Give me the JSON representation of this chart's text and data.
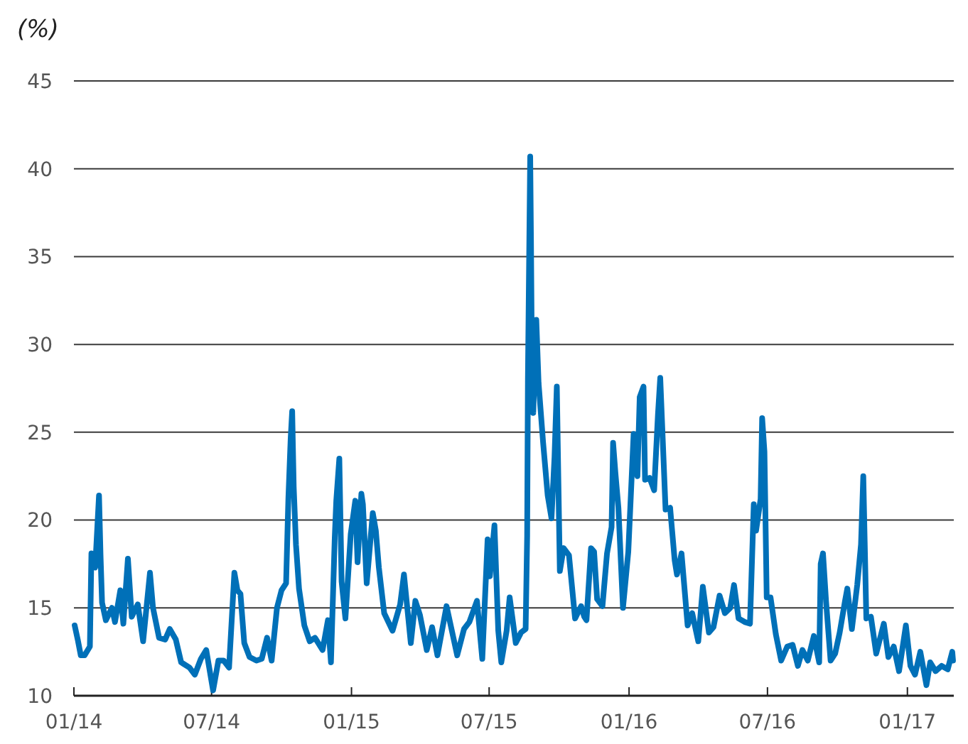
{
  "chart_data": {
    "type": "line",
    "ylabel": "(%)",
    "xlim": [
      "2014-01-01",
      "2017-03-03"
    ],
    "ylim": [
      10,
      45
    ],
    "yticks": [
      10,
      15,
      20,
      25,
      30,
      35,
      40,
      45
    ],
    "xticks": [
      {
        "value": "2014-01-01",
        "label": "01/14"
      },
      {
        "value": "2014-07-01",
        "label": "07/14"
      },
      {
        "value": "2015-01-01",
        "label": "01/15"
      },
      {
        "value": "2015-07-01",
        "label": "07/15"
      },
      {
        "value": "2016-01-01",
        "label": "01/16"
      },
      {
        "value": "2016-07-01",
        "label": "07/16"
      },
      {
        "value": "2017-01-01",
        "label": "01/17"
      }
    ],
    "grid": "y",
    "line_style": "solid",
    "marker": "none",
    "x": [
      "2014-01-02",
      "2014-01-06",
      "2014-01-10",
      "2014-01-15",
      "2014-01-22",
      "2014-01-24",
      "2014-01-27",
      "2014-01-29",
      "2014-02-03",
      "2014-02-05",
      "2014-02-07",
      "2014-02-12",
      "2014-02-20",
      "2014-02-24",
      "2014-03-03",
      "2014-03-07",
      "2014-03-13",
      "2014-03-18",
      "2014-03-26",
      "2014-04-02",
      "2014-04-11",
      "2014-04-15",
      "2014-04-23",
      "2014-05-01",
      "2014-05-07",
      "2014-05-15",
      "2014-05-22",
      "2014-06-02",
      "2014-06-09",
      "2014-06-17",
      "2014-06-24",
      "2014-07-03",
      "2014-07-10",
      "2014-07-17",
      "2014-07-24",
      "2014-07-31",
      "2014-08-04",
      "2014-08-08",
      "2014-08-13",
      "2014-08-20",
      "2014-08-29",
      "2014-09-05",
      "2014-09-12",
      "2014-09-18",
      "2014-09-25",
      "2014-10-01",
      "2014-10-07",
      "2014-10-10",
      "2014-10-13",
      "2014-10-15",
      "2014-10-17",
      "2014-10-20",
      "2014-10-24",
      "2014-10-31",
      "2014-11-07",
      "2014-11-14",
      "2014-11-24",
      "2014-12-01",
      "2014-12-05",
      "2014-12-10",
      "2014-12-12",
      "2014-12-16",
      "2014-12-19",
      "2014-12-24",
      "2014-12-31",
      "2015-01-06",
      "2015-01-09",
      "2015-01-14",
      "2015-01-16",
      "2015-01-21",
      "2015-01-29",
      "2015-02-02",
      "2015-02-06",
      "2015-02-13",
      "2015-02-24",
      "2015-03-06",
      "2015-03-11",
      "2015-03-20",
      "2015-03-26",
      "2015-04-01",
      "2015-04-10",
      "2015-04-17",
      "2015-04-24",
      "2015-05-06",
      "2015-05-12",
      "2015-05-20",
      "2015-05-29",
      "2015-06-05",
      "2015-06-15",
      "2015-06-22",
      "2015-06-29",
      "2015-07-02",
      "2015-07-08",
      "2015-07-13",
      "2015-07-17",
      "2015-07-24",
      "2015-07-28",
      "2015-08-05",
      "2015-08-12",
      "2015-08-18",
      "2015-08-20",
      "2015-08-21",
      "2015-08-24",
      "2015-08-25",
      "2015-08-26",
      "2015-08-28",
      "2015-09-01",
      "2015-09-04",
      "2015-09-10",
      "2015-09-16",
      "2015-09-21",
      "2015-09-25",
      "2015-09-28",
      "2015-10-02",
      "2015-10-07",
      "2015-10-14",
      "2015-10-22",
      "2015-10-30",
      "2015-11-03",
      "2015-11-06",
      "2015-11-12",
      "2015-11-16",
      "2015-11-20",
      "2015-11-27",
      "2015-12-03",
      "2015-12-09",
      "2015-12-11",
      "2015-12-14",
      "2015-12-18",
      "2015-12-24",
      "2015-12-31",
      "2016-01-07",
      "2016-01-12",
      "2016-01-15",
      "2016-01-20",
      "2016-01-22",
      "2016-01-28",
      "2016-02-03",
      "2016-02-08",
      "2016-02-11",
      "2016-02-18",
      "2016-02-24",
      "2016-03-01",
      "2016-03-04",
      "2016-03-10",
      "2016-03-18",
      "2016-03-24",
      "2016-04-01",
      "2016-04-07",
      "2016-04-15",
      "2016-04-21",
      "2016-04-29",
      "2016-05-06",
      "2016-05-13",
      "2016-05-18",
      "2016-05-24",
      "2016-06-01",
      "2016-06-08",
      "2016-06-13",
      "2016-06-16",
      "2016-06-22",
      "2016-06-24",
      "2016-06-27",
      "2016-06-30",
      "2016-07-05",
      "2016-07-12",
      "2016-07-19",
      "2016-07-27",
      "2016-08-03",
      "2016-08-10",
      "2016-08-16",
      "2016-08-23",
      "2016-08-31",
      "2016-09-07",
      "2016-09-09",
      "2016-09-12",
      "2016-09-16",
      "2016-09-22",
      "2016-09-28",
      "2016-10-04",
      "2016-10-11",
      "2016-10-14",
      "2016-10-20",
      "2016-10-27",
      "2016-11-01",
      "2016-11-04",
      "2016-11-08",
      "2016-11-14",
      "2016-11-21",
      "2016-12-01",
      "2016-12-07",
      "2016-12-14",
      "2016-12-21",
      "2016-12-30",
      "2017-01-05",
      "2017-01-11",
      "2017-01-18",
      "2017-01-26",
      "2017-01-31",
      "2017-02-07",
      "2017-02-15",
      "2017-02-23",
      "2017-03-01",
      "2017-03-02"
    ],
    "series": [
      {
        "color": "#0070b8",
        "values": [
          14.0,
          13.2,
          12.3,
          12.3,
          12.8,
          18.1,
          17.4,
          17.3,
          21.4,
          18.0,
          15.3,
          14.3,
          15.0,
          14.2,
          16.0,
          14.1,
          17.8,
          14.5,
          15.2,
          13.1,
          17.0,
          15.0,
          13.3,
          13.2,
          13.8,
          13.2,
          11.9,
          11.6,
          11.2,
          12.1,
          12.6,
          10.3,
          12.0,
          12.0,
          11.6,
          17.0,
          16.0,
          15.8,
          13.0,
          12.2,
          12.0,
          12.1,
          13.3,
          12.0,
          15.0,
          16.0,
          16.4,
          21.2,
          24.6,
          26.2,
          21.9,
          18.6,
          16.1,
          14.0,
          13.1,
          13.3,
          12.6,
          14.3,
          11.9,
          19.0,
          21.1,
          23.5,
          16.5,
          14.4,
          19.2,
          21.1,
          17.6,
          21.5,
          20.9,
          16.4,
          20.4,
          19.4,
          17.3,
          14.7,
          13.7,
          15.2,
          16.9,
          13.0,
          15.4,
          14.6,
          12.6,
          13.9,
          12.3,
          15.1,
          13.9,
          12.3,
          13.8,
          14.2,
          15.4,
          12.1,
          18.9,
          16.8,
          19.7,
          13.7,
          11.9,
          13.7,
          15.6,
          13.0,
          13.6,
          13.8,
          19.1,
          28.0,
          40.7,
          36.0,
          30.3,
          26.1,
          31.4,
          27.8,
          24.4,
          21.4,
          20.1,
          23.6,
          27.6,
          17.1,
          18.4,
          18.0,
          14.4,
          15.1,
          14.5,
          14.3,
          18.4,
          18.2,
          15.5,
          15.1,
          18.1,
          19.6,
          24.4,
          22.7,
          20.7,
          15.0,
          18.2,
          24.9,
          22.5,
          27.0,
          27.6,
          22.3,
          22.4,
          21.7,
          26.0,
          28.1,
          20.6,
          20.7,
          17.7,
          16.9,
          18.1,
          14.0,
          14.7,
          13.1,
          16.2,
          13.6,
          13.9,
          15.7,
          14.7,
          15.0,
          16.3,
          14.4,
          14.2,
          14.1,
          20.9,
          19.4,
          21.2,
          25.8,
          23.9,
          15.6,
          15.6,
          13.5,
          12.0,
          12.8,
          12.9,
          11.7,
          12.6,
          12.0,
          13.4,
          11.9,
          17.5,
          18.1,
          15.4,
          12.0,
          12.4,
          13.6,
          15.4,
          16.1,
          13.8,
          16.3,
          18.6,
          22.5,
          14.4,
          14.5,
          12.4,
          14.1,
          12.2,
          12.8,
          11.4,
          14.0,
          11.7,
          11.2,
          12.5,
          10.6,
          11.9,
          11.4,
          11.7,
          11.5,
          12.5,
          12.0
        ]
      }
    ]
  }
}
